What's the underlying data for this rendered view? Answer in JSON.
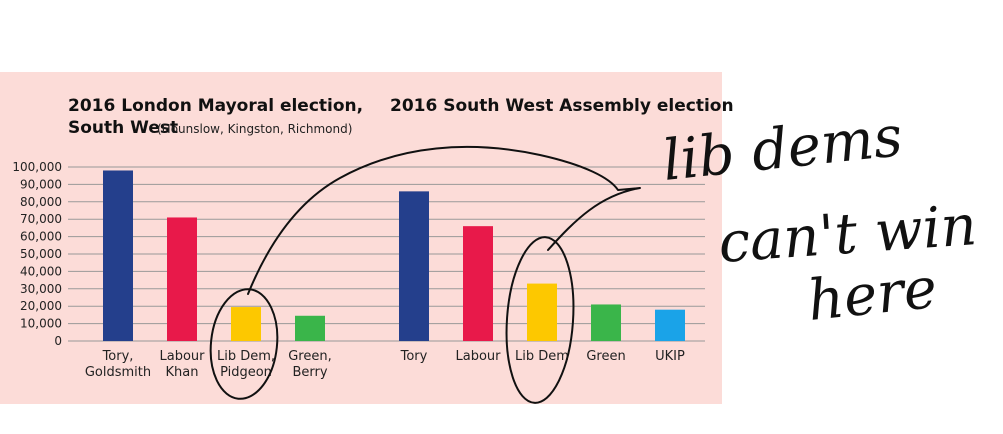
{
  "chart_data": [
    {
      "type": "bar",
      "title": "2016 London Mayoral election,",
      "title_line2": "South West",
      "subtitle": "(Hounslow, Kingston, Richmond)",
      "categories": [
        [
          "Tory,",
          "Goldsmith"
        ],
        [
          "Labour",
          "Khan"
        ],
        [
          "Lib Dem,",
          "Pidgeon"
        ],
        [
          "Green,",
          "Berry"
        ]
      ],
      "values": [
        98000,
        71000,
        19500,
        14500
      ],
      "colors": [
        "#243f8c",
        "#e8194a",
        "#fdc800",
        "#3ab54a"
      ],
      "ylim": [
        0,
        100000
      ],
      "yticks": [
        "100,000",
        "90,000",
        "80,000",
        "70,000",
        "60,000",
        "50,000",
        "40,000",
        "30,000",
        "20,000",
        "10,000",
        "0"
      ]
    },
    {
      "type": "bar",
      "title": "2016 South West Assembly election",
      "categories": [
        [
          "Tory"
        ],
        [
          "Labour"
        ],
        [
          "Lib Dem"
        ],
        [
          "Green"
        ],
        [
          "UKIP"
        ]
      ],
      "values": [
        86000,
        66000,
        33000,
        21000,
        18000
      ],
      "colors": [
        "#243f8c",
        "#e8194a",
        "#fdc800",
        "#3ab54a",
        "#1aa3e8"
      ],
      "ylim": [
        0,
        100000
      ]
    }
  ],
  "annotation": {
    "handwritten_text": [
      "lib dems",
      "can't win",
      "here"
    ],
    "color": "#111111"
  }
}
